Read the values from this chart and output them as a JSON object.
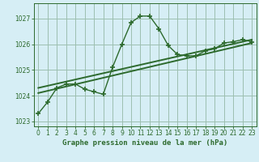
{
  "xlabel": "Graphe pression niveau de la mer (hPa)",
  "xlim": [
    -0.5,
    23.5
  ],
  "ylim": [
    1022.8,
    1027.6
  ],
  "yticks": [
    1023,
    1024,
    1025,
    1026,
    1027
  ],
  "xticks": [
    0,
    1,
    2,
    3,
    4,
    5,
    6,
    7,
    8,
    9,
    10,
    11,
    12,
    13,
    14,
    15,
    16,
    17,
    18,
    19,
    20,
    21,
    22,
    23
  ],
  "bg_color": "#d6eef5",
  "line_color": "#2d6a2d",
  "grid_color": "#9dbfb0",
  "main_x": [
    0,
    1,
    2,
    3,
    4,
    5,
    6,
    7,
    8,
    9,
    10,
    11,
    12,
    13,
    14,
    15,
    16,
    17,
    18,
    19,
    20,
    21,
    22,
    23
  ],
  "main_y": [
    1023.3,
    1023.75,
    1024.3,
    1024.45,
    1024.45,
    1024.25,
    1024.15,
    1024.05,
    1025.1,
    1026.0,
    1026.85,
    1027.1,
    1027.1,
    1026.6,
    1025.95,
    1025.6,
    1025.55,
    1025.55,
    1025.75,
    1025.82,
    1026.05,
    1026.1,
    1026.18,
    1026.1
  ],
  "trend_x": [
    0,
    23
  ],
  "trend_y": [
    1024.1,
    1026.05
  ],
  "trend2_x": [
    0,
    23
  ],
  "trend2_y": [
    1024.3,
    1026.18
  ],
  "xlabel_fontsize": 6.5,
  "tick_fontsize": 5.5
}
